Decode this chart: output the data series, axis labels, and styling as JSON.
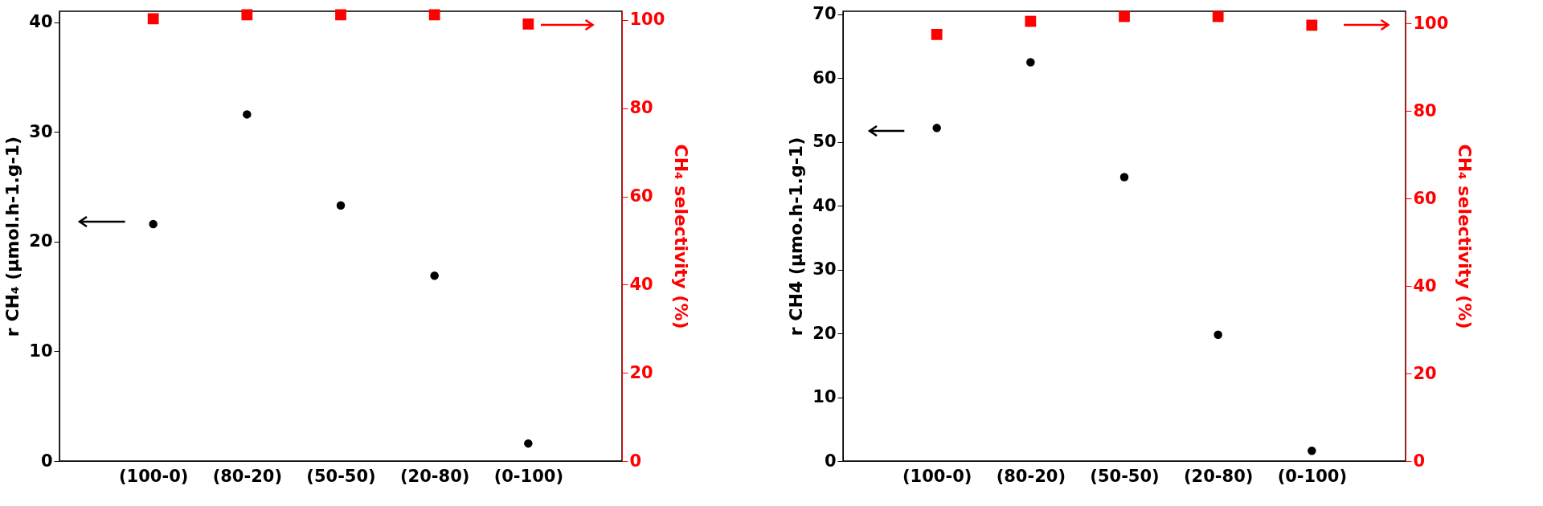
{
  "chart_data": [
    {
      "type": "scatter",
      "categories": [
        "(100-0)",
        "(80-20)",
        "(50-50)",
        "(20-80)",
        "(0-100)"
      ],
      "ylabel": "r CH₄ (µmol.h-1.g-1)",
      "y2label": "CH₄ selectivity (%)",
      "ylim": [
        0,
        41
      ],
      "yticks": [
        0,
        10,
        20,
        30,
        40
      ],
      "y2lim": [
        0,
        102
      ],
      "y2ticks": [
        0,
        20,
        40,
        60,
        80,
        100
      ],
      "series": [
        {
          "color": "#000000",
          "marker": "circle",
          "values": [
            21.6,
            31.6,
            23.3,
            16.9,
            1.6
          ]
        },
        {
          "color": "#ff0000",
          "marker": "square",
          "axis": "y2",
          "values": [
            100.3,
            101.2,
            101.2,
            101.2,
            99.1
          ]
        }
      ]
    },
    {
      "type": "scatter",
      "categories": [
        "(100-0)",
        "(80-20)",
        "(50-50)",
        "(20-80)",
        "(0-100)"
      ],
      "ylabel": "r CH4 (µmo.h-1.g-1)",
      "y2label": "CH₄ selectivity (%)",
      "ylim": [
        0,
        70.5
      ],
      "yticks": [
        0,
        10,
        20,
        30,
        40,
        50,
        60,
        70
      ],
      "y2lim": [
        0,
        102.8
      ],
      "y2ticks": [
        0,
        20,
        40,
        60,
        80,
        100
      ],
      "series": [
        {
          "color": "#000000",
          "marker": "circle",
          "values": [
            52.2,
            62.5,
            44.5,
            19.8,
            1.6
          ]
        },
        {
          "color": "#ff0000",
          "marker": "square",
          "axis": "y2",
          "values": [
            97.5,
            100.5,
            101.6,
            101.6,
            99.6
          ]
        }
      ]
    }
  ]
}
